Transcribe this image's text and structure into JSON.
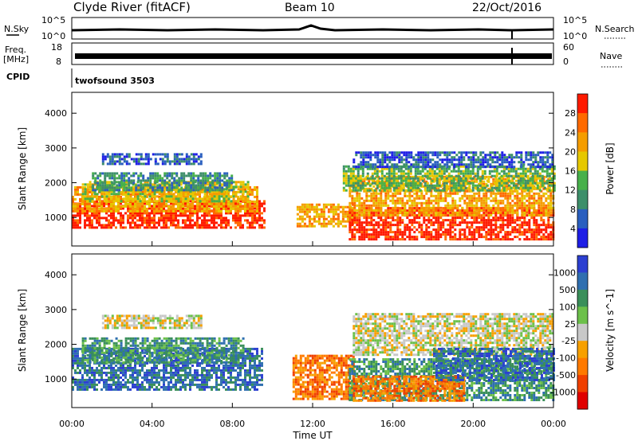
{
  "header": {
    "title": "Clyde River (fitACF)",
    "beam": "Beam 10",
    "date": "22/Oct/2016"
  },
  "top_panels": {
    "nsky_label": "N.Sky",
    "nsky_ticks": [
      "10^5",
      "10^0"
    ],
    "nsearch_label": "N.Search",
    "nsearch_ticks": [
      "10^5",
      "10^0"
    ],
    "freq_label_line1": "Freq.",
    "freq_label_line2": "[MHz]",
    "freq_ticks": [
      "18",
      "8"
    ],
    "nave_label": "Nave",
    "nave_ticks": [
      "60",
      "0"
    ],
    "cpid_label": "CPID",
    "cpid_value": "twofsound 3503"
  },
  "x_axis": {
    "ticks": [
      "00:00",
      "04:00",
      "08:00",
      "12:00",
      "16:00",
      "20:00",
      "00:00"
    ],
    "label": "Time UT"
  },
  "colors": {
    "power_scale": [
      "#1e1ee6",
      "#2a5fbf",
      "#3d8f6a",
      "#47b04a",
      "#e6c800",
      "#f59d00",
      "#ff6a00",
      "#ff1a00"
    ],
    "velocity_scale": [
      "#2c3fd1",
      "#2f6fb0",
      "#3a8f5a",
      "#6cc04a",
      "#c8c8c8",
      "#f7a000",
      "#ff7a00",
      "#f04000",
      "#e00000"
    ]
  },
  "chart_data": [
    {
      "type": "heatmap",
      "panel": "power",
      "ylabel": "Slant Range [km]",
      "xlim": [
        0,
        24
      ],
      "ylim": [
        180,
        4600
      ],
      "yticks": [
        "1000",
        "2000",
        "3000",
        "4000"
      ],
      "colorbar_label": "Power [dB]",
      "colorbar_ticks": [
        "4",
        "8",
        "12",
        "16",
        "20",
        "24",
        "28"
      ],
      "regions": [
        {
          "t0": 0.0,
          "t1": 9.6,
          "r0": 700,
          "r1": 1500,
          "level": 7
        },
        {
          "t0": 0.0,
          "t1": 9.2,
          "r0": 1200,
          "r1": 1900,
          "level": 5
        },
        {
          "t0": 0.5,
          "t1": 8.8,
          "r0": 1500,
          "r1": 2050,
          "level": 4
        },
        {
          "t0": 1.0,
          "t1": 8.0,
          "r0": 1800,
          "r1": 2300,
          "level": 2
        },
        {
          "t0": 1.5,
          "t1": 6.5,
          "r0": 2550,
          "r1": 2850,
          "level": 1
        },
        {
          "t0": 11.2,
          "t1": 14.0,
          "r0": 750,
          "r1": 1400,
          "level": 5
        },
        {
          "t0": 13.8,
          "t1": 24.0,
          "r0": 350,
          "r1": 1300,
          "level": 7
        },
        {
          "t0": 13.8,
          "t1": 24.0,
          "r0": 1100,
          "r1": 2200,
          "level": 5
        },
        {
          "t0": 13.5,
          "t1": 24.0,
          "r0": 1800,
          "r1": 2500,
          "level": 3
        },
        {
          "t0": 14.0,
          "t1": 24.0,
          "r0": 2450,
          "r1": 2900,
          "level": 1
        }
      ]
    },
    {
      "type": "heatmap",
      "panel": "velocity",
      "ylabel": "Slant Range [km]",
      "xlim": [
        0,
        24
      ],
      "ylim": [
        180,
        4600
      ],
      "yticks": [
        "1000",
        "2000",
        "3000",
        "4000"
      ],
      "colorbar_label": "Velocity [m s^-1]",
      "colorbar_ticks": [
        "1000",
        "500",
        "100",
        "25",
        "-25",
        "-100",
        "-500",
        "-1000"
      ],
      "regions": [
        {
          "t0": 0.0,
          "t1": 9.5,
          "r0": 700,
          "r1": 1900,
          "level": 1
        },
        {
          "t0": 0.5,
          "t1": 8.5,
          "r0": 1500,
          "r1": 2200,
          "level": 2
        },
        {
          "t0": 1.5,
          "t1": 6.5,
          "r0": 2500,
          "r1": 2850,
          "level": 4
        },
        {
          "t0": 11.0,
          "t1": 14.0,
          "r0": 400,
          "r1": 1700,
          "level": 6
        },
        {
          "t0": 13.8,
          "t1": 24.0,
          "r0": 400,
          "r1": 1600,
          "level": 2
        },
        {
          "t0": 14.0,
          "t1": 19.5,
          "r0": 400,
          "r1": 1100,
          "level": 6
        },
        {
          "t0": 14.0,
          "t1": 24.0,
          "r0": 1700,
          "r1": 2900,
          "level": 4
        },
        {
          "t0": 18.0,
          "t1": 24.0,
          "r0": 1000,
          "r1": 1900,
          "level": 1
        }
      ]
    }
  ]
}
